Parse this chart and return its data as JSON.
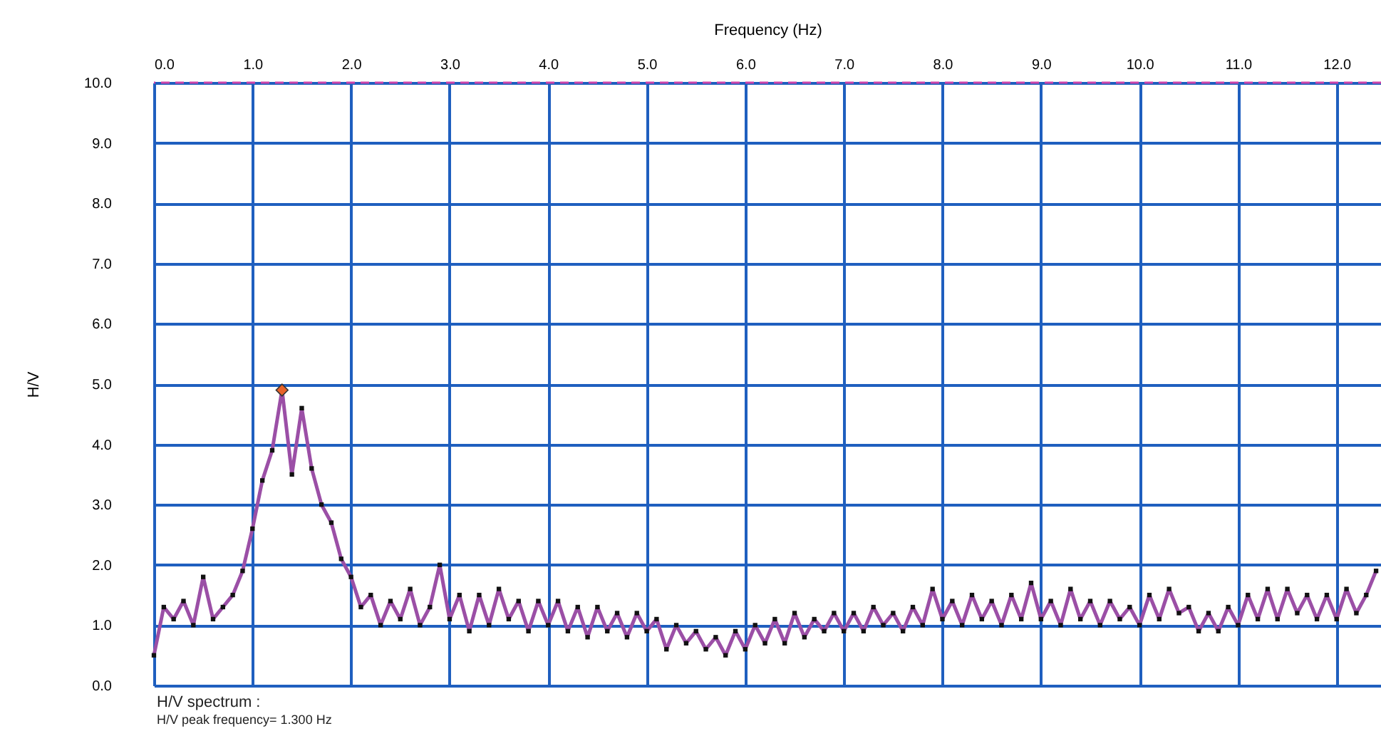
{
  "chart_data": {
    "type": "line",
    "xlabel": "Frequency (Hz)",
    "ylabel": "H/V",
    "x": [
      0.0,
      0.1,
      0.2,
      0.3,
      0.4,
      0.5,
      0.6,
      0.7,
      0.8,
      0.9,
      1.0,
      1.1,
      1.2,
      1.3,
      1.4,
      1.5,
      1.6,
      1.7,
      1.8,
      1.9,
      2.0,
      2.1,
      2.2,
      2.3,
      2.4,
      2.5,
      2.6,
      2.7,
      2.8,
      2.9,
      3.0,
      3.1,
      3.2,
      3.3,
      3.4,
      3.5,
      3.6,
      3.7,
      3.8,
      3.9,
      4.0,
      4.1,
      4.2,
      4.3,
      4.4,
      4.5,
      4.6,
      4.7,
      4.8,
      4.9,
      5.0,
      5.1,
      5.2,
      5.3,
      5.4,
      5.5,
      5.6,
      5.7,
      5.8,
      5.9,
      6.0,
      6.1,
      6.2,
      6.3,
      6.4,
      6.5,
      6.6,
      6.7,
      6.8,
      6.9,
      7.0,
      7.1,
      7.2,
      7.3,
      7.4,
      7.5,
      7.6,
      7.7,
      7.8,
      7.9,
      8.0,
      8.1,
      8.2,
      8.3,
      8.4,
      8.5,
      8.6,
      8.7,
      8.8,
      8.9,
      9.0,
      9.1,
      9.2,
      9.3,
      9.4,
      9.5,
      9.6,
      9.7,
      9.8,
      9.9,
      10.0,
      10.1,
      10.2,
      10.3,
      10.4,
      10.5,
      10.6,
      10.7,
      10.8,
      10.9,
      11.0,
      11.1,
      11.2,
      11.3,
      11.4,
      11.5,
      11.6,
      11.7,
      11.8,
      11.9,
      12.0,
      12.1,
      12.2,
      12.3,
      12.4
    ],
    "series": [
      {
        "color": "#9b4fa6",
        "marker": "square",
        "values": [
          0.5,
          1.3,
          1.1,
          1.4,
          1.0,
          1.8,
          1.1,
          1.3,
          1.5,
          1.9,
          2.6,
          3.4,
          3.9,
          4.9,
          3.5,
          4.6,
          3.6,
          3.0,
          2.7,
          2.1,
          1.8,
          1.3,
          1.5,
          1.0,
          1.4,
          1.1,
          1.6,
          1.0,
          1.3,
          2.0,
          1.1,
          1.5,
          0.9,
          1.5,
          1.0,
          1.6,
          1.1,
          1.4,
          0.9,
          1.4,
          1.0,
          1.4,
          0.9,
          1.3,
          0.8,
          1.3,
          0.9,
          1.2,
          0.8,
          1.2,
          0.9,
          1.1,
          0.6,
          1.0,
          0.7,
          0.9,
          0.6,
          0.8,
          0.5,
          0.9,
          0.6,
          1.0,
          0.7,
          1.1,
          0.7,
          1.2,
          0.8,
          1.1,
          0.9,
          1.2,
          0.9,
          1.2,
          0.9,
          1.3,
          1.0,
          1.2,
          0.9,
          1.3,
          1.0,
          1.6,
          1.1,
          1.4,
          1.0,
          1.5,
          1.1,
          1.4,
          1.0,
          1.5,
          1.1,
          1.7,
          1.1,
          1.4,
          1.0,
          1.6,
          1.1,
          1.4,
          1.0,
          1.4,
          1.1,
          1.3,
          1.0,
          1.5,
          1.1,
          1.6,
          1.2,
          1.3,
          0.9,
          1.2,
          0.9,
          1.3,
          1.0,
          1.5,
          1.1,
          1.6,
          1.1,
          1.6,
          1.2,
          1.5,
          1.1,
          1.5,
          1.1,
          1.6,
          1.2,
          1.5,
          1.9
        ]
      },
      {
        "type": "scatter",
        "marker": "diamond",
        "color": "#e8632a",
        "x": [
          1.3
        ],
        "values": [
          4.9
        ]
      }
    ],
    "xlim": [
      0,
      12.45
    ],
    "ylim": [
      0,
      10
    ],
    "xticks": [
      {
        "value": 0,
        "label": "0.0"
      },
      {
        "value": 1,
        "label": "1.0"
      },
      {
        "value": 2,
        "label": "2.0"
      },
      {
        "value": 3,
        "label": "3.0"
      },
      {
        "value": 4,
        "label": "4.0"
      },
      {
        "value": 5,
        "label": "5.0"
      },
      {
        "value": 6,
        "label": "6.0"
      },
      {
        "value": 7,
        "label": "7.0"
      },
      {
        "value": 8,
        "label": "8.0"
      },
      {
        "value": 9,
        "label": "9.0"
      },
      {
        "value": 10,
        "label": "10.0"
      },
      {
        "value": 11,
        "label": "11.0"
      },
      {
        "value": 12,
        "label": "12.0"
      }
    ],
    "yticks": [
      {
        "value": 0,
        "label": "0.0"
      },
      {
        "value": 1,
        "label": "1.0"
      },
      {
        "value": 2,
        "label": "2.0"
      },
      {
        "value": 3,
        "label": "3.0"
      },
      {
        "value": 4,
        "label": "4.0"
      },
      {
        "value": 5,
        "label": "5.0"
      },
      {
        "value": 6,
        "label": "6.0"
      },
      {
        "value": 7,
        "label": "7.0"
      },
      {
        "value": 8,
        "label": "8.0"
      },
      {
        "value": 9,
        "label": "9.0"
      },
      {
        "value": 10,
        "label": "10.0"
      }
    ],
    "grid": true,
    "ref_lines": [
      {
        "axis": "y",
        "value": 10,
        "label": null,
        "color": "#cc44aa",
        "line_style": "dashed"
      }
    ],
    "annotations": [
      "H/V spectrum :",
      "H/V peak frequency= 1.300 Hz"
    ]
  }
}
